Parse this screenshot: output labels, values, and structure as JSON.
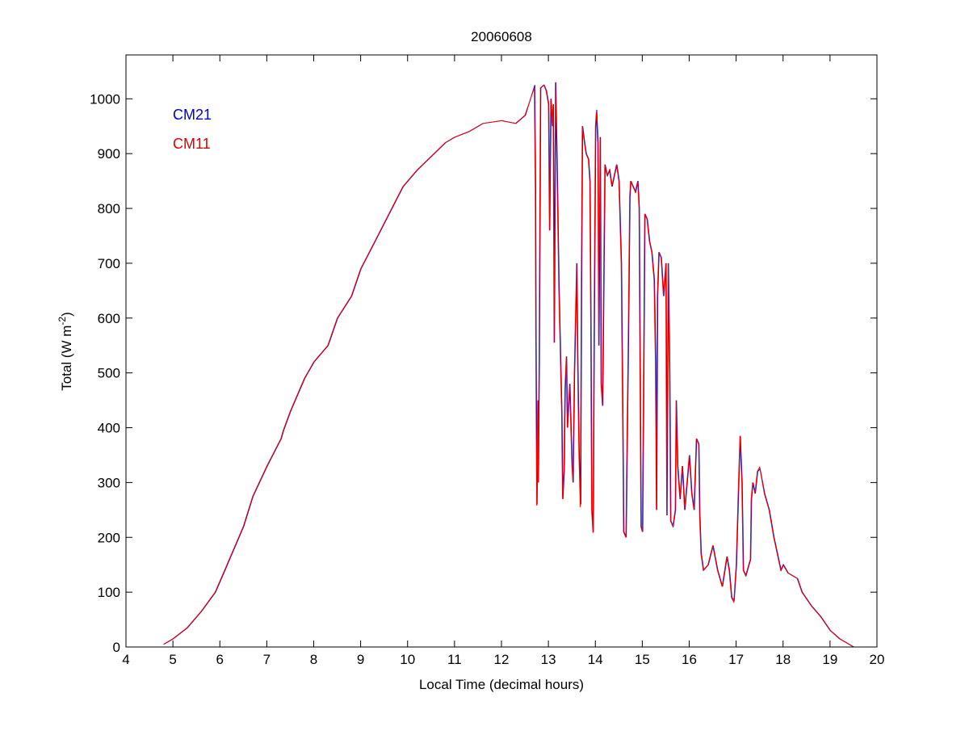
{
  "chart_data": {
    "type": "line",
    "title": "20060608",
    "xlabel": "Local Time (decimal hours)",
    "ylabel_main": "Total (W m",
    "ylabel_sup": "-2",
    "ylabel_end": ")",
    "xlim": [
      4,
      20
    ],
    "ylim": [
      0,
      1080
    ],
    "xticks": [
      4,
      5,
      6,
      7,
      8,
      9,
      10,
      11,
      12,
      13,
      14,
      15,
      16,
      17,
      18,
      19,
      20
    ],
    "yticks": [
      0,
      100,
      200,
      300,
      400,
      500,
      600,
      700,
      800,
      900,
      1000
    ],
    "grid": false,
    "legend_placement": "top-left",
    "series": [
      {
        "name": "CM21",
        "color": "#0000cc"
      },
      {
        "name": "CM11",
        "color": "#ff0000"
      }
    ],
    "x": [
      4.8,
      5.0,
      5.3,
      5.6,
      5.9,
      6.1,
      6.3,
      6.5,
      6.7,
      7.0,
      7.3,
      7.35,
      7.5,
      7.8,
      8.0,
      8.3,
      8.5,
      8.8,
      9.0,
      9.3,
      9.6,
      9.9,
      10.2,
      10.5,
      10.8,
      11.0,
      11.3,
      11.6,
      12.0,
      12.3,
      12.5,
      12.7,
      12.72,
      12.73,
      12.75,
      12.77,
      12.78,
      12.8,
      12.83,
      12.9,
      12.95,
      13.0,
      13.02,
      13.05,
      13.08,
      13.1,
      13.12,
      13.15,
      13.18,
      13.22,
      13.28,
      13.3,
      13.33,
      13.35,
      13.38,
      13.4,
      13.45,
      13.5,
      13.52,
      13.55,
      13.6,
      13.62,
      13.65,
      13.68,
      13.7,
      13.72,
      13.75,
      13.8,
      13.85,
      13.88,
      13.9,
      13.92,
      13.95,
      13.97,
      14.0,
      14.02,
      14.05,
      14.07,
      14.1,
      14.12,
      14.15,
      14.18,
      14.2,
      14.25,
      14.3,
      14.35,
      14.4,
      14.45,
      14.5,
      14.55,
      14.58,
      14.6,
      14.65,
      14.7,
      14.73,
      14.75,
      14.8,
      14.85,
      14.9,
      14.93,
      14.95,
      14.97,
      15.0,
      15.02,
      15.05,
      15.1,
      15.15,
      15.2,
      15.25,
      15.28,
      15.3,
      15.32,
      15.35,
      15.4,
      15.45,
      15.5,
      15.52,
      15.55,
      15.58,
      15.6,
      15.65,
      15.7,
      15.72,
      15.75,
      15.8,
      15.85,
      15.9,
      15.95,
      16.0,
      16.05,
      16.1,
      16.15,
      16.2,
      16.22,
      16.25,
      16.3,
      16.4,
      16.5,
      16.6,
      16.7,
      16.8,
      16.85,
      16.9,
      16.95,
      17.0,
      17.05,
      17.08,
      17.12,
      17.15,
      17.2,
      17.3,
      17.32,
      17.35,
      17.4,
      17.45,
      17.5,
      17.6,
      17.7,
      17.8,
      17.9,
      17.95,
      18.0,
      18.1,
      18.2,
      18.3,
      18.4,
      18.6,
      18.8,
      19.0,
      19.2,
      19.5
    ],
    "values_CM21": [
      5,
      15,
      35,
      65,
      100,
      140,
      180,
      220,
      275,
      330,
      380,
      395,
      430,
      490,
      520,
      550,
      600,
      640,
      690,
      740,
      790,
      840,
      870,
      895,
      920,
      930,
      940,
      955,
      960,
      955,
      970,
      1025,
      830,
      560,
      260,
      450,
      300,
      520,
      1020,
      1025,
      1015,
      990,
      760,
      1000,
      950,
      990,
      555,
      1030,
      880,
      660,
      430,
      270,
      320,
      470,
      530,
      400,
      480,
      330,
      300,
      500,
      700,
      520,
      350,
      260,
      650,
      950,
      930,
      900,
      890,
      850,
      600,
      250,
      210,
      560,
      950,
      980,
      920,
      550,
      930,
      480,
      440,
      700,
      880,
      860,
      870,
      840,
      860,
      880,
      850,
      700,
      420,
      210,
      200,
      560,
      820,
      850,
      840,
      830,
      850,
      800,
      500,
      220,
      210,
      420,
      790,
      780,
      740,
      720,
      670,
      520,
      250,
      640,
      720,
      710,
      640,
      700,
      240,
      700,
      500,
      230,
      220,
      250,
      450,
      330,
      270,
      330,
      250,
      300,
      350,
      280,
      250,
      380,
      370,
      240,
      170,
      140,
      150,
      185,
      140,
      110,
      165,
      140,
      90,
      85,
      150,
      300,
      385,
      300,
      140,
      130,
      160,
      270,
      300,
      280,
      320,
      325,
      280,
      250,
      200,
      160,
      140,
      150,
      135,
      130,
      125,
      100,
      75,
      55,
      30,
      15,
      0
    ],
    "values_CM11": [
      5,
      15,
      35,
      65,
      100,
      140,
      180,
      220,
      275,
      330,
      380,
      395,
      430,
      490,
      520,
      550,
      600,
      640,
      690,
      740,
      790,
      840,
      870,
      895,
      920,
      930,
      940,
      955,
      960,
      955,
      970,
      1020,
      830,
      560,
      258,
      450,
      300,
      520,
      1020,
      1025,
      1015,
      990,
      760,
      1000,
      950,
      990,
      555,
      1030,
      880,
      660,
      430,
      270,
      320,
      470,
      530,
      400,
      480,
      330,
      300,
      500,
      700,
      520,
      350,
      255,
      650,
      950,
      930,
      900,
      890,
      850,
      600,
      250,
      208,
      560,
      950,
      975,
      920,
      550,
      930,
      480,
      440,
      700,
      880,
      860,
      870,
      840,
      860,
      880,
      850,
      700,
      420,
      210,
      200,
      560,
      820,
      850,
      840,
      830,
      850,
      800,
      500,
      220,
      210,
      420,
      790,
      780,
      740,
      720,
      670,
      520,
      250,
      640,
      720,
      710,
      640,
      700,
      240,
      700,
      500,
      230,
      220,
      250,
      450,
      330,
      270,
      330,
      250,
      300,
      350,
      280,
      250,
      380,
      370,
      240,
      170,
      140,
      150,
      185,
      140,
      110,
      165,
      140,
      90,
      82,
      150,
      300,
      385,
      300,
      140,
      130,
      160,
      270,
      300,
      280,
      320,
      328,
      280,
      250,
      200,
      160,
      140,
      150,
      135,
      130,
      125,
      100,
      75,
      55,
      30,
      15,
      0
    ]
  }
}
